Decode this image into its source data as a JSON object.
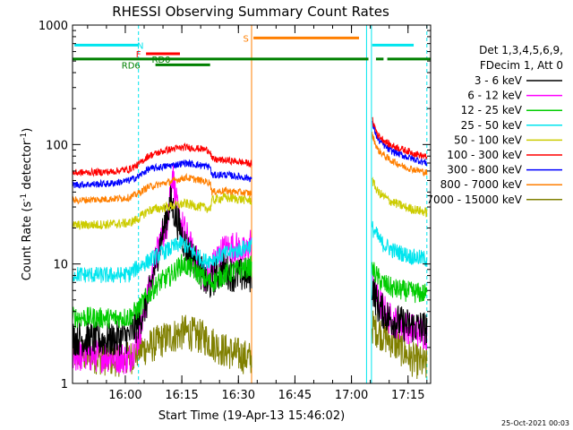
{
  "chart_data": {
    "type": "line",
    "title": "RHESSI Observing Summary Count Rates",
    "xlabel": "Start Time (19-Apr-13 15:46:02)",
    "ylabel_main": "Count Rate (s",
    "ylabel_sup1": "-1",
    "ylabel_mid": " detector",
    "ylabel_sup2": "-1",
    "ylabel_end": ")",
    "y_scale": "log",
    "ylim": [
      1,
      1000
    ],
    "xlim_minutes": [
      0,
      95
    ],
    "yticks": [
      {
        "value": 1,
        "label": "1"
      },
      {
        "value": 10,
        "label": "10"
      },
      {
        "value": 100,
        "label": "100"
      },
      {
        "value": 1000,
        "label": "1000"
      }
    ],
    "xticks": [
      {
        "minute": 14,
        "label": "16:00"
      },
      {
        "minute": 29,
        "label": "16:15"
      },
      {
        "minute": 44,
        "label": "16:30"
      },
      {
        "minute": 59,
        "label": "16:45"
      },
      {
        "minute": 74,
        "label": "17:00"
      },
      {
        "minute": 89,
        "label": "17:15"
      }
    ],
    "legend": {
      "placement": "top-right outside plot",
      "header1": "Det 1,3,4,5,6,9,",
      "header2": "FDecim 1, Att 0",
      "entries": [
        {
          "label": "3 - 6 keV",
          "color": "#000000"
        },
        {
          "label": "6 - 12 keV",
          "color": "#ff00ff"
        },
        {
          "label": "12 - 25 keV",
          "color": "#00cc00"
        },
        {
          "label": "25 - 50 keV",
          "color": "#00e5ee"
        },
        {
          "label": "50 - 100 keV",
          "color": "#cccc00"
        },
        {
          "label": "100 - 300 keV",
          "color": "#ff0000"
        },
        {
          "label": "300 - 800 keV",
          "color": "#0000ff"
        },
        {
          "label": "800 - 7000 keV",
          "color": "#ff7f00"
        },
        {
          "label": "7000 - 15000 keV",
          "color": "#808000"
        }
      ]
    },
    "flags": [
      {
        "label": "N",
        "color": "#00e5ee",
        "level": 680,
        "segments": [
          [
            0.5,
            17.5
          ],
          [
            79.5,
            90.5
          ]
        ],
        "label_minute": 18
      },
      {
        "label": "F",
        "color": "#ff0000",
        "level": 575,
        "segments": [
          [
            19.5,
            28.5
          ]
        ],
        "label_minute": 17.5
      },
      {
        "label": "RD0",
        "color": "#008000",
        "level": 520,
        "segments": [
          [
            0,
            78.5
          ],
          [
            80.5,
            82.5
          ],
          [
            83.5,
            95
          ]
        ],
        "label_minute": 23.5
      },
      {
        "label": "RD6",
        "color": "#008000",
        "level": 465,
        "segments": [
          [
            22,
            36.5
          ]
        ],
        "label_minute": 15.5
      },
      {
        "label": "S",
        "color": "#ff7f00",
        "level": 780,
        "segments": [
          [
            48,
            76
          ]
        ],
        "label_minute": 46
      }
    ],
    "vlines": [
      {
        "minute": 0,
        "color": "#00e5ee",
        "dashed": false
      },
      {
        "minute": 17.5,
        "color": "#00e5ee",
        "dashed": true
      },
      {
        "minute": 47.5,
        "color": "#ff7f00",
        "dashed": false
      },
      {
        "minute": 78,
        "color": "#00e5ee",
        "dashed": false
      },
      {
        "minute": 79.3,
        "color": "#00e5ee",
        "dashed": false
      },
      {
        "minute": 94,
        "color": "#00e5ee",
        "dashed": true
      }
    ],
    "segments": [
      [
        0,
        47.5
      ],
      [
        79.5,
        94
      ]
    ],
    "series": [
      {
        "color": "#808000",
        "noise": 0.15,
        "points": [
          [
            0,
            1.8
          ],
          [
            5,
            1.7
          ],
          [
            10,
            1.6
          ],
          [
            15,
            1.6
          ],
          [
            17.5,
            1.9
          ],
          [
            20,
            2.0
          ],
          [
            25,
            2.4
          ],
          [
            30,
            2.7
          ],
          [
            35,
            2.4
          ],
          [
            40,
            1.9
          ],
          [
            47.5,
            1.6
          ],
          [
            79.5,
            3.0
          ],
          [
            82,
            2.6
          ],
          [
            86,
            2.1
          ],
          [
            90,
            1.6
          ],
          [
            94,
            1.4
          ]
        ]
      },
      {
        "color": "#ff00ff",
        "noise": 0.14,
        "points": [
          [
            0,
            1.7
          ],
          [
            10,
            1.7
          ],
          [
            15,
            1.6
          ],
          [
            17.5,
            2.4
          ],
          [
            21,
            7.5
          ],
          [
            23,
            15
          ],
          [
            25,
            22
          ],
          [
            26.5,
            60
          ],
          [
            28,
            25
          ],
          [
            30,
            18
          ],
          [
            32,
            12
          ],
          [
            34,
            9
          ],
          [
            36,
            7.5
          ],
          [
            38,
            11
          ],
          [
            40,
            13
          ],
          [
            43,
            14
          ],
          [
            46,
            12
          ],
          [
            47.5,
            16
          ],
          [
            79.5,
            7
          ],
          [
            81,
            5
          ],
          [
            84,
            3.5
          ],
          [
            88,
            3.0
          ],
          [
            94,
            2.6
          ]
        ]
      },
      {
        "color": "#000000",
        "noise": 0.15,
        "points": [
          [
            0,
            2.4
          ],
          [
            10,
            2.3
          ],
          [
            15,
            2.5
          ],
          [
            17.5,
            3.2
          ],
          [
            20,
            5
          ],
          [
            23,
            14
          ],
          [
            26,
            33
          ],
          [
            28,
            22
          ],
          [
            30,
            14
          ],
          [
            33,
            10
          ],
          [
            36,
            6.5
          ],
          [
            38,
            8
          ],
          [
            40,
            9
          ],
          [
            43,
            8
          ],
          [
            47.5,
            8
          ],
          [
            79.5,
            6.5
          ],
          [
            81,
            4.5
          ],
          [
            84,
            3.5
          ],
          [
            88,
            3.1
          ],
          [
            94,
            2.9
          ]
        ]
      },
      {
        "color": "#00cc00",
        "noise": 0.09,
        "points": [
          [
            0,
            3.6
          ],
          [
            10,
            3.5
          ],
          [
            15,
            3.6
          ],
          [
            17.5,
            4.2
          ],
          [
            20,
            5.5
          ],
          [
            23,
            7
          ],
          [
            26,
            8
          ],
          [
            29,
            10
          ],
          [
            32,
            9
          ],
          [
            35,
            7.5
          ],
          [
            37,
            7
          ],
          [
            40,
            8
          ],
          [
            44,
            9
          ],
          [
            47.5,
            9.5
          ],
          [
            79.5,
            9
          ],
          [
            82,
            7
          ],
          [
            85,
            6.2
          ],
          [
            90,
            5.8
          ],
          [
            94,
            5.6
          ]
        ]
      },
      {
        "color": "#00e5ee",
        "noise": 0.07,
        "points": [
          [
            0,
            8.2
          ],
          [
            10,
            8.0
          ],
          [
            15,
            8.2
          ],
          [
            17.5,
            9.5
          ],
          [
            20,
            10.5
          ],
          [
            23,
            12
          ],
          [
            26,
            13.5
          ],
          [
            29,
            15
          ],
          [
            32,
            12.5
          ],
          [
            35,
            10.5
          ],
          [
            37,
            11
          ],
          [
            40,
            12
          ],
          [
            44,
            13
          ],
          [
            47.5,
            14.5
          ],
          [
            79.5,
            20
          ],
          [
            82,
            15
          ],
          [
            85,
            13
          ],
          [
            90,
            11.5
          ],
          [
            94,
            11
          ]
        ]
      },
      {
        "color": "#cccc00",
        "noise": 0.04,
        "points": [
          [
            0,
            21
          ],
          [
            10,
            21.5
          ],
          [
            15,
            22
          ],
          [
            17.5,
            24
          ],
          [
            20,
            28
          ],
          [
            25,
            30
          ],
          [
            30,
            32
          ],
          [
            34,
            30
          ],
          [
            36.5,
            29
          ],
          [
            37,
            34
          ],
          [
            40,
            36
          ],
          [
            44,
            35
          ],
          [
            47.5,
            34
          ],
          [
            79.5,
            50
          ],
          [
            81,
            40
          ],
          [
            84,
            34
          ],
          [
            88,
            30
          ],
          [
            94,
            27
          ]
        ]
      },
      {
        "color": "#ff7f00",
        "noise": 0.03,
        "points": [
          [
            0,
            34
          ],
          [
            10,
            35
          ],
          [
            15,
            36
          ],
          [
            17.5,
            39
          ],
          [
            20,
            44
          ],
          [
            25,
            48
          ],
          [
            30,
            53
          ],
          [
            34,
            50
          ],
          [
            36.5,
            48
          ],
          [
            37,
            40
          ],
          [
            40,
            41
          ],
          [
            44,
            40
          ],
          [
            47.5,
            39
          ],
          [
            79.5,
            120
          ],
          [
            81,
            90
          ],
          [
            84,
            75
          ],
          [
            88,
            65
          ],
          [
            94,
            58
          ]
        ]
      },
      {
        "color": "#0000ff",
        "noise": 0.03,
        "points": [
          [
            0,
            46
          ],
          [
            10,
            47
          ],
          [
            15,
            50
          ],
          [
            17.5,
            54
          ],
          [
            20,
            62
          ],
          [
            25,
            66
          ],
          [
            30,
            70
          ],
          [
            34,
            67
          ],
          [
            36.5,
            65
          ],
          [
            37,
            55
          ],
          [
            40,
            56
          ],
          [
            44,
            54
          ],
          [
            47.5,
            52
          ],
          [
            79.5,
            150
          ],
          [
            81,
            110
          ],
          [
            84,
            90
          ],
          [
            88,
            80
          ],
          [
            94,
            70
          ]
        ]
      },
      {
        "color": "#ff0000",
        "noise": 0.03,
        "points": [
          [
            0,
            58
          ],
          [
            10,
            59
          ],
          [
            15,
            62
          ],
          [
            17.5,
            68
          ],
          [
            20,
            80
          ],
          [
            25,
            90
          ],
          [
            30,
            95
          ],
          [
            34,
            92
          ],
          [
            36.5,
            89
          ],
          [
            37,
            75
          ],
          [
            40,
            74
          ],
          [
            44,
            72
          ],
          [
            47.5,
            69
          ],
          [
            79.5,
            160
          ],
          [
            81,
            120
          ],
          [
            84,
            100
          ],
          [
            88,
            90
          ],
          [
            94,
            78
          ]
        ]
      }
    ]
  },
  "timestamp": "25-Oct-2021 00:03"
}
